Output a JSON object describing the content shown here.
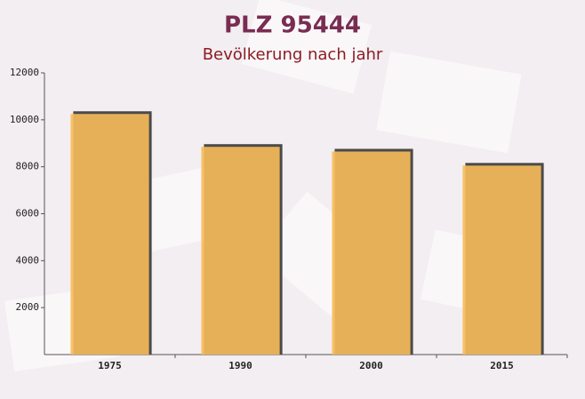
{
  "chart_data": {
    "type": "bar",
    "title": "PLZ 95444",
    "subtitle": "Bevölkerung nach jahr",
    "categories": [
      "1975",
      "1990",
      "2000",
      "2015"
    ],
    "values": [
      10250,
      8850,
      8650,
      8050
    ],
    "color": "#f7bb5a",
    "ylim": [
      0,
      12000
    ],
    "yticks": [
      2000,
      4000,
      6000,
      8000,
      10000,
      12000
    ],
    "grid": false
  }
}
